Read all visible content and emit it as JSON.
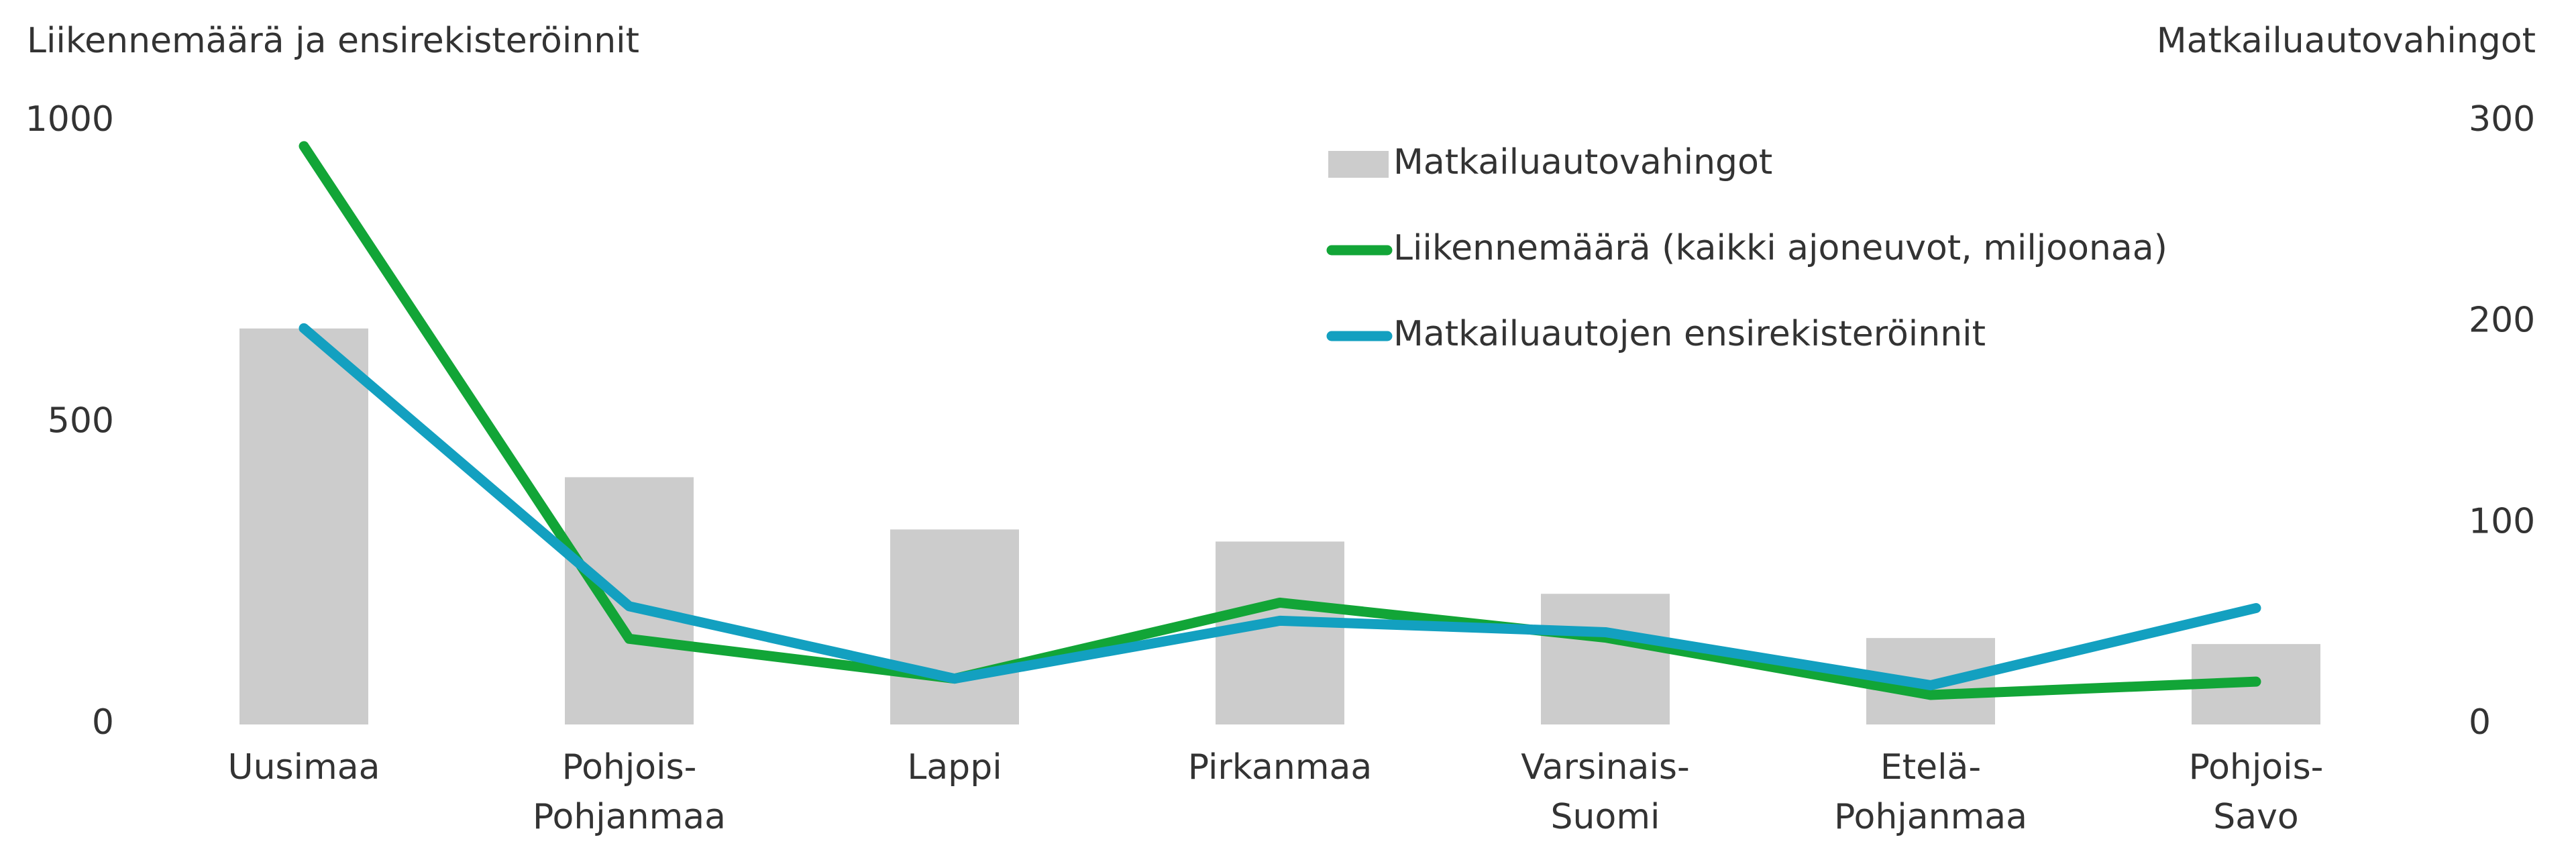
{
  "chart_data": {
    "type": "combo",
    "y_label": "Liikennemäärä ja ensirekisteröinnit",
    "y2_label": "Matkailuautovahingot",
    "categories": [
      "Uusimaa",
      "Pohjois-\nPohjanmaa",
      "Lappi",
      "Pirkanmaa",
      "Varsinais-\nSuomi",
      "Etelä-\nPohjanmaa",
      "Pohjois-\nSavo"
    ],
    "series": [
      {
        "name": "Matkailuautovahingot",
        "type": "bar",
        "axis": "y2",
        "color": "#cccccc",
        "values": [
          197,
          123,
          97,
          91,
          65,
          43,
          40
        ]
      },
      {
        "name": "Liikennemäärä (kaikki ajoneuvot, miljoonaa)",
        "type": "line",
        "color": "#12a537",
        "values": [
          959,
          142,
          76,
          202,
          144,
          49,
          71
        ]
      },
      {
        "name": "Matkailuautojen ensirekisteröinnit",
        "type": "line",
        "color": "#13a0c0",
        "values": [
          657,
          196,
          76,
          172,
          153,
          65,
          193
        ]
      }
    ],
    "ylim": [
      0,
      1000
    ],
    "yticks": [
      0,
      500,
      1000
    ],
    "y2lim": [
      0,
      300
    ],
    "y2ticks": [
      0,
      100,
      200,
      300
    ],
    "grid": false,
    "legend": "top-right"
  }
}
